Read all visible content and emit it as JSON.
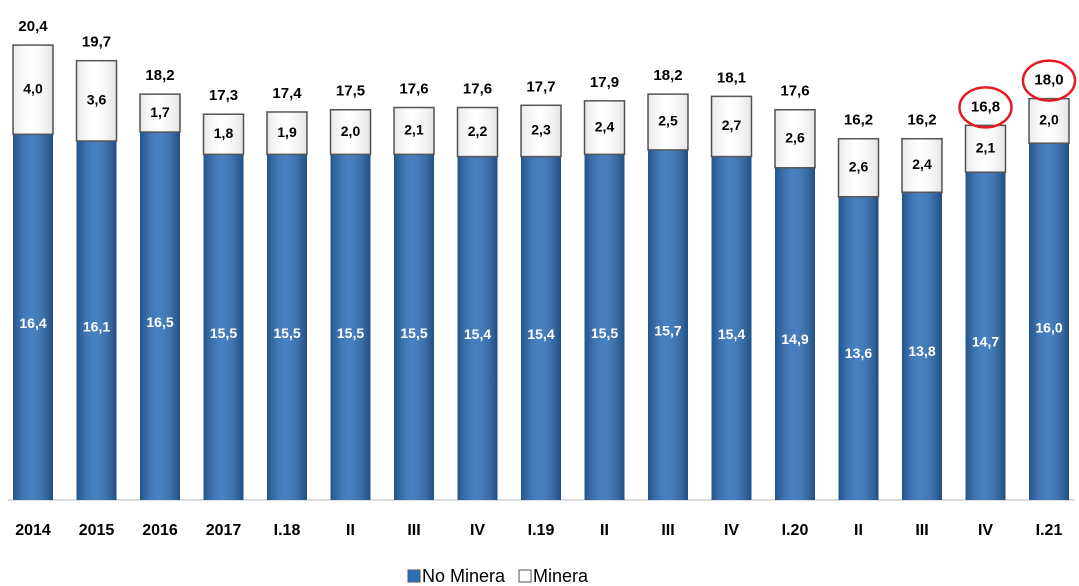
{
  "chart_data": {
    "type": "stacked_bar",
    "categories": [
      "2014",
      "2015",
      "2016",
      "2017",
      "I.18",
      "II",
      "III",
      "IV",
      "I.19",
      "II",
      "III",
      "IV",
      "I.20",
      "II",
      "III",
      "IV",
      "I.21"
    ],
    "series": [
      {
        "name": "No Minera",
        "color": "#2e6fb9",
        "values": [
          16.4,
          16.1,
          16.5,
          15.5,
          15.5,
          15.5,
          15.5,
          15.4,
          15.4,
          15.5,
          15.7,
          15.4,
          14.9,
          13.6,
          13.8,
          14.7,
          16.0
        ],
        "value_labels": [
          "16,4",
          "16,1",
          "16,5",
          "15,5",
          "15,5",
          "15,5",
          "15,5",
          "15,4",
          "15,4",
          "15,5",
          "15,7",
          "15,4",
          "14,9",
          "13,6",
          "13,8",
          "14,7",
          "16,0"
        ]
      },
      {
        "name": "Minera",
        "color": "#ffffff",
        "values": [
          4.0,
          3.6,
          1.7,
          1.8,
          1.9,
          2.0,
          2.1,
          2.2,
          2.3,
          2.4,
          2.5,
          2.7,
          2.6,
          2.6,
          2.4,
          2.1,
          2.0
        ],
        "value_labels": [
          "4,0",
          "3,6",
          "1,7",
          "1,8",
          "1,9",
          "2,0",
          "2,1",
          "2,2",
          "2,3",
          "2,4",
          "2,5",
          "2,7",
          "2,6",
          "2,6",
          "2,4",
          "2,1",
          "2,0"
        ]
      }
    ],
    "totals": [
      20.4,
      19.7,
      18.2,
      17.3,
      17.4,
      17.5,
      17.6,
      17.6,
      17.7,
      17.9,
      18.2,
      18.1,
      17.6,
      16.2,
      16.2,
      16.8,
      18.0
    ],
    "total_labels": [
      "20,4",
      "19,7",
      "18,2",
      "17,3",
      "17,4",
      "17,5",
      "17,6",
      "17,6",
      "17,7",
      "17,9",
      "18,2",
      "18,1",
      "17,6",
      "16,2",
      "16,2",
      "16,8",
      "18,0"
    ],
    "highlight": [
      15,
      16
    ],
    "legend": "bottom"
  }
}
